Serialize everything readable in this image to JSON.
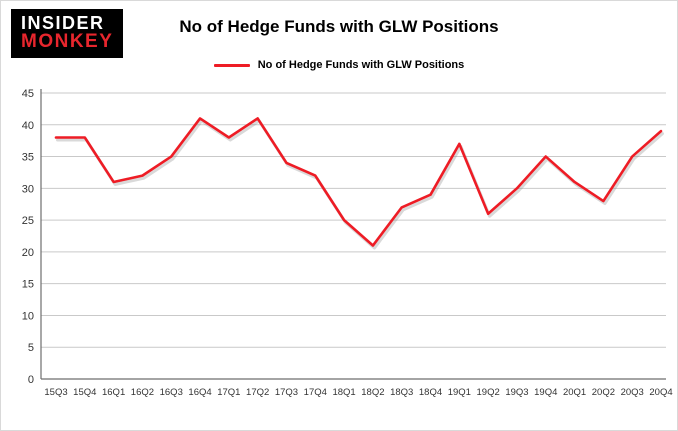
{
  "logo": {
    "line1": "INSIDER",
    "line2": "MONKEY"
  },
  "header": {
    "title": "No of Hedge Funds with GLW Positions"
  },
  "legend": {
    "label": "No of Hedge Funds with GLW Positions"
  },
  "colors": {
    "line": "#ee1c25",
    "logo_bg": "#000000",
    "logo_line1": "#ffffff",
    "logo_line2": "#e8262d",
    "grid": "#c9c9c9",
    "axis": "#6e6e6e",
    "tick_text": "#333333"
  },
  "chart_data": {
    "type": "line",
    "title": "No of Hedge Funds with GLW Positions",
    "categories": [
      "15Q3",
      "15Q4",
      "16Q1",
      "16Q2",
      "16Q3",
      "16Q4",
      "17Q1",
      "17Q2",
      "17Q3",
      "17Q4",
      "18Q1",
      "18Q2",
      "18Q3",
      "18Q4",
      "19Q1",
      "19Q2",
      "19Q3",
      "19Q4",
      "20Q1",
      "20Q2",
      "20Q3",
      "20Q4"
    ],
    "values": [
      38,
      38,
      31,
      32,
      35,
      41,
      38,
      41,
      34,
      32,
      25,
      21,
      27,
      29,
      37,
      26,
      30,
      35,
      31,
      28,
      35,
      39
    ],
    "xlabel": "",
    "ylabel": "",
    "ylim": [
      0,
      45
    ],
    "ytick_step": 5,
    "grid": true,
    "legend_position": "top",
    "series_color": "#ee1c25"
  }
}
